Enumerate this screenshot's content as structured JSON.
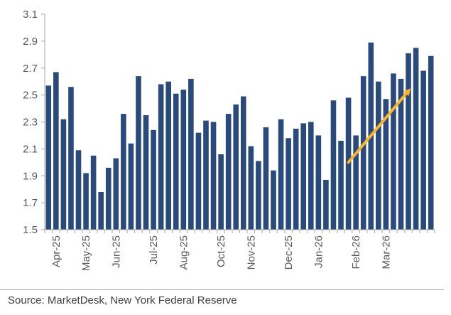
{
  "source": "Source: MarketDesk, New York Federal Reserve",
  "chart_data": {
    "type": "bar",
    "ylim": [
      1.5,
      3.1
    ],
    "yticks": [
      1.5,
      1.7,
      1.9,
      2.1,
      2.3,
      2.5,
      2.7,
      2.9,
      3.1
    ],
    "ytick_labels": [
      "1.5",
      "1.7",
      "1.9",
      "2.1",
      "2.3",
      "2.5",
      "2.7",
      "2.9",
      "3.1"
    ],
    "month_labels": [
      {
        "label": "Apr-25",
        "index": 1
      },
      {
        "label": "May-25",
        "index": 5
      },
      {
        "label": "Jun-25",
        "index": 9
      },
      {
        "label": "Jul-25",
        "index": 14
      },
      {
        "label": "Aug-25",
        "index": 18
      },
      {
        "label": "Oct-25",
        "index": 23
      },
      {
        "label": "Nov-25",
        "index": 27
      },
      {
        "label": "Dec-25",
        "index": 32
      },
      {
        "label": "Jan-26",
        "index": 36
      },
      {
        "label": "Feb-26",
        "index": 41
      },
      {
        "label": "Mar-26",
        "index": 45
      }
    ],
    "values": [
      2.57,
      2.67,
      2.32,
      2.56,
      2.09,
      1.92,
      2.05,
      1.78,
      1.96,
      2.03,
      2.36,
      2.14,
      2.64,
      2.35,
      2.24,
      2.58,
      2.6,
      2.51,
      2.54,
      2.62,
      2.22,
      2.31,
      2.3,
      2.06,
      2.36,
      2.43,
      2.49,
      2.12,
      2.01,
      2.26,
      1.94,
      2.32,
      2.18,
      2.25,
      2.29,
      2.3,
      2.2,
      1.87,
      2.46,
      2.16,
      2.48,
      2.2,
      2.64,
      2.89,
      2.6,
      2.47,
      2.66,
      2.62,
      2.81,
      2.85,
      2.68,
      2.79
    ],
    "bar_color": "#2a4a7c",
    "trend_arrow": {
      "from": {
        "index": 40,
        "value": 2.0
      },
      "to": {
        "index": 48,
        "value": 2.53
      },
      "color": "#f5b52e"
    },
    "grid": false
  }
}
